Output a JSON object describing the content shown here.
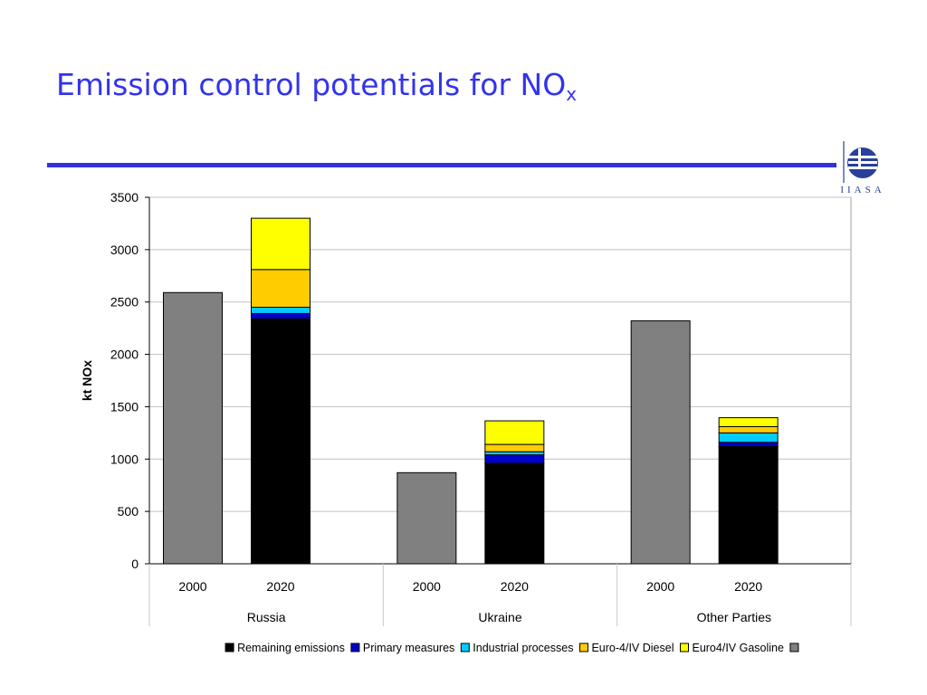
{
  "slide": {
    "title_main": "Emission control potentials for NO",
    "title_sub": "x"
  },
  "logo": {
    "text": "IIASA",
    "icon": "iiasa-globe-logo"
  },
  "colors": {
    "title": "#3333ee",
    "rule": "#3333dd",
    "grid": "#c0c0c0",
    "axis": "#000000"
  },
  "chart_data": {
    "type": "bar",
    "stacked": true,
    "ylabel": "kt NOx",
    "xlabel": "",
    "ylim": [
      0,
      3500
    ],
    "yticks": [
      0,
      500,
      1000,
      1500,
      2000,
      2500,
      3000,
      3500
    ],
    "grid": true,
    "legend_position": "bottom",
    "groups": [
      {
        "name": "Russia",
        "years": [
          "2000",
          "2020"
        ]
      },
      {
        "name": "Ukraine",
        "years": [
          "2000",
          "2020"
        ]
      },
      {
        "name": "Other Parties",
        "years": [
          "2000",
          "2020"
        ]
      }
    ],
    "series": [
      {
        "name": "Remaining emissions",
        "color": "#000000",
        "values": [
          0,
          2340,
          0,
          960,
          0,
          1120
        ]
      },
      {
        "name": "Primary measures",
        "color": "#0000cc",
        "values": [
          0,
          50,
          0,
          80,
          0,
          40
        ]
      },
      {
        "name": "Industrial processes",
        "color": "#00ccff",
        "values": [
          0,
          60,
          0,
          30,
          0,
          90
        ]
      },
      {
        "name": "Euro-4/IV Diesel",
        "color": "#ffcc00",
        "values": [
          0,
          360,
          0,
          70,
          0,
          60
        ]
      },
      {
        "name": "Euro4/IV Gasoline",
        "color": "#ffff00",
        "values": [
          0,
          490,
          0,
          225,
          0,
          85
        ]
      },
      {
        "name": "",
        "color": "#808080",
        "values": [
          2590,
          0,
          870,
          0,
          2320,
          0
        ]
      }
    ]
  }
}
